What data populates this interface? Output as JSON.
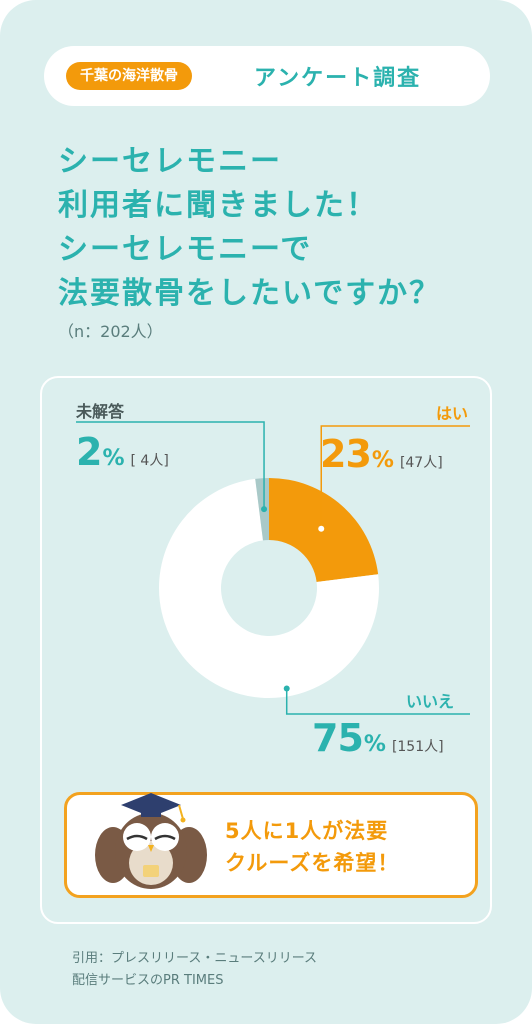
{
  "header": {
    "brand": "千葉の海洋散骨",
    "title": "アンケート調査"
  },
  "headline": {
    "line1": "シーセレモニー",
    "line2": "利用者に聞きました！",
    "line3": "シーセレモニーで",
    "line4": "法要散骨をしたいですか？"
  },
  "sample_note": "（n：202人）",
  "chart_data": {
    "type": "pie",
    "title": "シーセレモニーで法要散骨をしたいですか？",
    "categories": [
      "はい",
      "いいえ",
      "未解答"
    ],
    "values": [
      23,
      75,
      2
    ],
    "counts": [
      47,
      151,
      4
    ],
    "unit": "%",
    "colors": [
      "#f39a0b",
      "#ffffff",
      "#a9c9c8"
    ],
    "labels": [
      {
        "name": "はい",
        "pct": "23",
        "count": "[47人]"
      },
      {
        "name": "いいえ",
        "pct": "75",
        "count": "[151人]"
      },
      {
        "name": "未解答",
        "pct": "2",
        "count": "[ 4人]"
      }
    ],
    "percent_sign": "%"
  },
  "callout": {
    "line1": "5人に1人が法要",
    "line2": "クルーズを希望！"
  },
  "footer": {
    "line1": "引用：プレスリリース・ニュースリリース",
    "line2": "配信サービスのPR TIMES"
  },
  "colors": {
    "background": "#dcefee",
    "teal": "#2bb2ae",
    "orange": "#f39a0b",
    "grey": "#a9c9c8"
  },
  "icons": [
    "owl-mascot-icon",
    "graduation-cap-icon"
  ]
}
